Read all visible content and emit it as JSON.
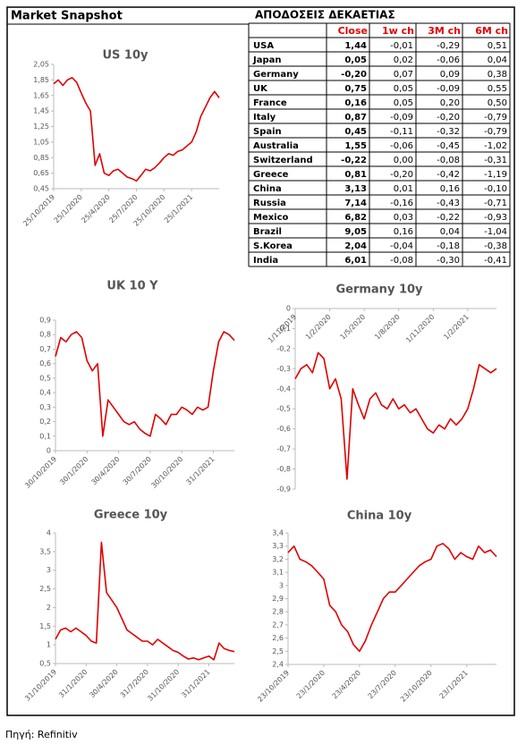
{
  "header": {
    "title": "Market Snapshot"
  },
  "table": {
    "title": "ΑΠΟΔΟΣΕΙΣ ΔΕΚΑΕΤΙΑΣ",
    "columns": [
      "Close",
      "1w ch",
      "3M ch",
      "6M ch"
    ],
    "rows": [
      [
        "USA",
        "1,44",
        "-0,01",
        "-0,29",
        "0,51"
      ],
      [
        "Japan",
        "0,05",
        "0,02",
        "-0,06",
        "0,04"
      ],
      [
        "Germany",
        "-0,20",
        "0,07",
        "0,09",
        "0,38"
      ],
      [
        "UK",
        "0,75",
        "0,05",
        "-0,09",
        "0,55"
      ],
      [
        "France",
        "0,16",
        "0,05",
        "0,20",
        "0,50"
      ],
      [
        "Italy",
        "0,87",
        "-0,09",
        "-0,20",
        "-0,79"
      ],
      [
        "Spain",
        "0,45",
        "-0,11",
        "-0,32",
        "-0,79"
      ],
      [
        "Australia",
        "1,55",
        "-0,06",
        "-0,45",
        "-1,02"
      ],
      [
        "Switzerland",
        "-0,22",
        "0,00",
        "-0,08",
        "-0,31"
      ],
      [
        "Greece",
        "0,81",
        "-0,20",
        "-0,42",
        "-1,19"
      ],
      [
        "China",
        "3,13",
        "0,01",
        "0,16",
        "-0,10"
      ],
      [
        "Russia",
        "7,14",
        "-0,16",
        "-0,43",
        "-0,71"
      ],
      [
        "Mexico",
        "6,82",
        "0,03",
        "-0,22",
        "-0,93"
      ],
      [
        "Brazil",
        "9,05",
        "0,16",
        "0,04",
        "-1,04"
      ],
      [
        "S.Korea",
        "2,04",
        "-0,04",
        "-0,18",
        "-0,38"
      ],
      [
        "India",
        "6,01",
        "-0,08",
        "-0,30",
        "-0,41"
      ]
    ]
  },
  "chart_data": [
    {
      "type": "line",
      "title": "US 10y",
      "categories": [
        "25/10/2019",
        null,
        null,
        null,
        null,
        null,
        "25/1/2020",
        null,
        null,
        null,
        null,
        null,
        "25/4/2020",
        null,
        null,
        null,
        null,
        null,
        "25/7/2020",
        null,
        null,
        null,
        null,
        null,
        "25/10/2020",
        null,
        null,
        null,
        null,
        null,
        "25/1/2021",
        null,
        null,
        null,
        null,
        null,
        null
      ],
      "series": [
        {
          "color": "#e00000",
          "values": [
            1.8,
            1.85,
            1.78,
            1.85,
            1.88,
            1.82,
            1.68,
            1.55,
            1.45,
            0.75,
            0.9,
            0.65,
            0.62,
            0.68,
            0.7,
            0.65,
            0.6,
            0.58,
            0.55,
            0.62,
            0.7,
            0.68,
            0.72,
            0.78,
            0.85,
            0.9,
            0.88,
            0.93,
            0.95,
            1.0,
            1.05,
            1.18,
            1.38,
            1.5,
            1.62,
            1.7,
            1.62
          ]
        }
      ],
      "ylim": [
        0.45,
        2.05
      ],
      "yticks": [
        {
          "value": 0.45,
          "label": "0,45"
        },
        {
          "value": 0.65,
          "label": "0,65"
        },
        {
          "value": 0.85,
          "label": "0,85"
        },
        {
          "value": 1.05,
          "label": "1,05"
        },
        {
          "value": 1.25,
          "label": "1,25"
        },
        {
          "value": 1.45,
          "label": "1,45"
        },
        {
          "value": 1.65,
          "label": "1,65"
        },
        {
          "value": 1.85,
          "label": "1,85"
        },
        {
          "value": 2.05,
          "label": "2,05"
        }
      ]
    },
    {
      "type": "line",
      "title": "UK 10 Y",
      "categories": [
        "30/10/2019",
        null,
        null,
        null,
        null,
        null,
        "30/1/2020",
        null,
        null,
        null,
        null,
        null,
        "30/4/2020",
        null,
        null,
        null,
        null,
        null,
        "30/7/2020",
        null,
        null,
        null,
        null,
        null,
        "30/10/2020",
        null,
        null,
        null,
        null,
        null,
        "31/1/2021",
        null,
        null,
        null,
        null
      ],
      "series": [
        {
          "color": "#e00000",
          "values": [
            0.65,
            0.78,
            0.75,
            0.8,
            0.82,
            0.78,
            0.62,
            0.55,
            0.6,
            0.1,
            0.35,
            0.3,
            0.25,
            0.2,
            0.18,
            0.2,
            0.15,
            0.12,
            0.1,
            0.25,
            0.22,
            0.18,
            0.25,
            0.25,
            0.3,
            0.28,
            0.25,
            0.3,
            0.28,
            0.3,
            0.55,
            0.75,
            0.82,
            0.8,
            0.76
          ]
        }
      ],
      "ylim": [
        0,
        0.9
      ],
      "yticks": [
        0,
        {
          "value": 0.1,
          "label": "0,1"
        },
        {
          "value": 0.2,
          "label": "0,2"
        },
        {
          "value": 0.3,
          "label": "0,3"
        },
        {
          "value": 0.4,
          "label": "0,4"
        },
        {
          "value": 0.5,
          "label": "0,5"
        },
        {
          "value": 0.6,
          "label": "0,6"
        },
        {
          "value": 0.7,
          "label": "0,7"
        },
        {
          "value": 0.8,
          "label": "0,8"
        },
        {
          "value": 0.9,
          "label": "0,9"
        }
      ]
    },
    {
      "type": "line",
      "title": "Germany 10y",
      "categories": [
        "1/11/2019",
        null,
        null,
        null,
        null,
        null,
        "1/2/2020",
        null,
        null,
        null,
        null,
        null,
        "1/5/2020",
        null,
        null,
        null,
        null,
        null,
        "1/8/2020",
        null,
        null,
        null,
        null,
        null,
        "1/11/2020",
        null,
        null,
        null,
        null,
        null,
        "1/2/2021",
        null,
        null,
        null,
        null,
        null
      ],
      "series": [
        {
          "color": "#e00000",
          "values": [
            -0.35,
            -0.3,
            -0.28,
            -0.32,
            -0.22,
            -0.25,
            -0.4,
            -0.35,
            -0.45,
            -0.85,
            -0.4,
            -0.48,
            -0.55,
            -0.45,
            -0.42,
            -0.48,
            -0.5,
            -0.45,
            -0.5,
            -0.48,
            -0.52,
            -0.5,
            -0.55,
            -0.6,
            -0.62,
            -0.58,
            -0.6,
            -0.55,
            -0.58,
            -0.55,
            -0.5,
            -0.4,
            -0.28,
            -0.3,
            -0.32,
            -0.3
          ]
        }
      ],
      "ylim": [
        -0.9,
        0
      ],
      "yticks": [
        0,
        {
          "value": -0.1,
          "label": "-0,1"
        },
        {
          "value": -0.2,
          "label": "-0,2"
        },
        {
          "value": -0.3,
          "label": "-0,3"
        },
        {
          "value": -0.4,
          "label": "-0,4"
        },
        {
          "value": -0.5,
          "label": "-0,5"
        },
        {
          "value": -0.6,
          "label": "-0,6"
        },
        {
          "value": -0.7,
          "label": "-0,7"
        },
        {
          "value": -0.8,
          "label": "-0,8"
        },
        {
          "value": -0.9,
          "label": "-0,9"
        }
      ]
    },
    {
      "type": "line",
      "title": "Greece 10y",
      "categories": [
        "31/10/2019",
        null,
        null,
        null,
        null,
        null,
        "31/1/2020",
        null,
        null,
        null,
        null,
        null,
        "30/4/2020",
        null,
        null,
        null,
        null,
        null,
        "31/7/2020",
        null,
        null,
        null,
        null,
        null,
        "31/10/2020",
        null,
        null,
        null,
        null,
        null,
        "31/1/2021",
        null,
        null,
        null,
        null,
        null
      ],
      "series": [
        {
          "color": "#e00000",
          "values": [
            1.15,
            1.4,
            1.45,
            1.35,
            1.45,
            1.35,
            1.25,
            1.1,
            1.05,
            3.75,
            2.4,
            2.2,
            2.0,
            1.7,
            1.4,
            1.3,
            1.2,
            1.1,
            1.1,
            1.0,
            1.15,
            1.05,
            0.95,
            0.85,
            0.8,
            0.7,
            0.62,
            0.65,
            0.6,
            0.65,
            0.7,
            0.6,
            1.05,
            0.9,
            0.85,
            0.82
          ]
        }
      ],
      "ylim": [
        0.5,
        4
      ],
      "yticks": [
        {
          "value": 0.5,
          "label": "0,5"
        },
        1,
        {
          "value": 1.5,
          "label": "1,5"
        },
        2,
        {
          "value": 2.5,
          "label": "2,5"
        },
        3,
        {
          "value": 3.5,
          "label": "3,5"
        },
        4
      ]
    },
    {
      "type": "line",
      "title": "China 10y",
      "categories": [
        "23/10/2019",
        null,
        null,
        null,
        null,
        null,
        "23/1/2020",
        null,
        null,
        null,
        null,
        null,
        "23/4/2020",
        null,
        null,
        null,
        null,
        null,
        "23/7/2020",
        null,
        null,
        null,
        null,
        null,
        "23/10/2020",
        null,
        null,
        null,
        null,
        null,
        "23/1/2021",
        null,
        null,
        null,
        null,
        null
      ],
      "series": [
        {
          "color": "#e00000",
          "values": [
            3.25,
            3.3,
            3.2,
            3.18,
            3.15,
            3.1,
            3.05,
            2.85,
            2.8,
            2.7,
            2.65,
            2.55,
            2.5,
            2.58,
            2.7,
            2.8,
            2.9,
            2.95,
            2.95,
            3.0,
            3.05,
            3.1,
            3.15,
            3.18,
            3.2,
            3.3,
            3.32,
            3.28,
            3.2,
            3.25,
            3.22,
            3.2,
            3.3,
            3.25,
            3.27,
            3.22
          ]
        }
      ],
      "ylim": [
        2.4,
        3.4
      ],
      "yticks": [
        {
          "value": 2.4,
          "label": "2,4"
        },
        {
          "value": 2.5,
          "label": "2,5"
        },
        {
          "value": 2.6,
          "label": "2,6"
        },
        {
          "value": 2.7,
          "label": "2,7"
        },
        {
          "value": 2.8,
          "label": "2,8"
        },
        {
          "value": 2.9,
          "label": "2,9"
        },
        3,
        {
          "value": 3.1,
          "label": "3,1"
        },
        {
          "value": 3.2,
          "label": "3,2"
        },
        {
          "value": 3.3,
          "label": "3,3"
        },
        {
          "value": 3.4,
          "label": "3,4"
        }
      ]
    }
  ],
  "footer": {
    "source": "Πηγή: Refinitiv"
  }
}
